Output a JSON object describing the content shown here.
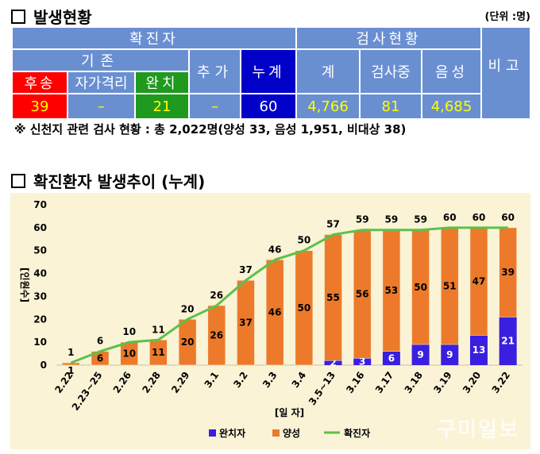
{
  "section1": {
    "title": "발생현황",
    "unit": "(단위 :명)"
  },
  "table": {
    "h_confirmed": "확진자",
    "h_tests": "검사현황",
    "h_note": "비고",
    "h_existing": "기존",
    "h_added": "추가",
    "h_cumulative": "누계",
    "h_total": "계",
    "h_testing": "검사중",
    "h_negative": "음성",
    "h_hospital": "후송",
    "h_self": "자가격리",
    "h_cured": "완치",
    "v_hospital": "39",
    "v_self": "–",
    "v_cured": "21",
    "v_added": "–",
    "v_cumulative": "60",
    "v_total": "4,766",
    "v_testing": "81",
    "v_negative": "4,685",
    "v_note": ""
  },
  "note": "※ 신천지 관련 검사 현황 : 총 2,022명(양성 33, 음성 1,951, 비대상 38)",
  "section2": {
    "title": "확진환자 발생추이 (누계)"
  },
  "watermark": "구미일보",
  "colors": {
    "cured": "#3a1fe0",
    "positive": "#ec7a2a",
    "line": "#5bc24a",
    "background": "#fbf3d6"
  },
  "chart_data": {
    "type": "bar",
    "stacked": true,
    "categories": [
      "2.22",
      "2.23~25",
      "2.26",
      "2.28",
      "2.29",
      "3.1",
      "3.2",
      "3.3",
      "3.4",
      "3.5~13",
      "3.16",
      "3.17",
      "3.18",
      "3.19",
      "3.20",
      "3.22"
    ],
    "series": [
      {
        "name": "완치자",
        "type": "bar",
        "values": [
          0,
          0,
          0,
          0,
          0,
          0,
          0,
          0,
          0,
          2,
          3,
          6,
          9,
          9,
          13,
          21
        ]
      },
      {
        "name": "양성",
        "type": "bar",
        "values": [
          1,
          6,
          10,
          11,
          20,
          26,
          37,
          46,
          50,
          55,
          56,
          53,
          50,
          51,
          47,
          39
        ]
      },
      {
        "name": "확진자",
        "type": "line",
        "values": [
          1,
          6,
          10,
          11,
          20,
          26,
          37,
          46,
          50,
          57,
          59,
          59,
          59,
          60,
          60,
          60
        ]
      }
    ],
    "xlabel": "[일 자]",
    "ylabel": "[인원수]",
    "ylim": [
      0,
      70
    ],
    "yticks": [
      0,
      10,
      20,
      30,
      40,
      50,
      60,
      70
    ],
    "legend": "bottom",
    "grid": false
  }
}
